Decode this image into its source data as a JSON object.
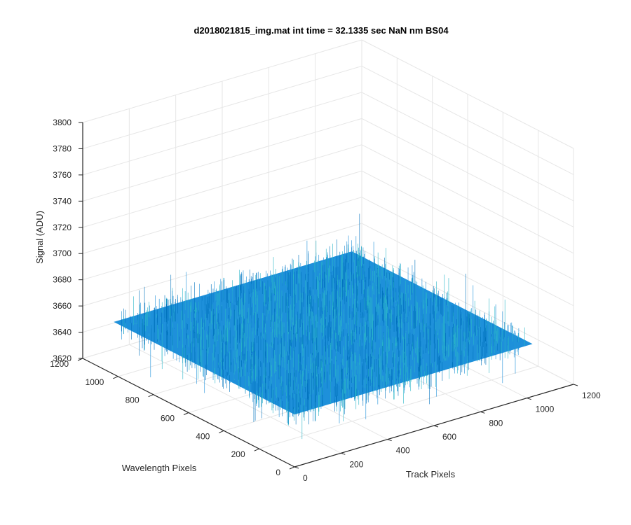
{
  "chart_data": {
    "type": "surface",
    "title": "d2018021815_img.mat int time = 32.1335 sec  NaN nm BS04",
    "x_axis": {
      "label": "Track Pixels",
      "range": [
        0,
        1200
      ],
      "ticks": [
        0,
        200,
        400,
        600,
        800,
        1000,
        1200
      ]
    },
    "y_axis": {
      "label": "Wavelength Pixels",
      "range": [
        0,
        1200
      ],
      "ticks": [
        0,
        200,
        400,
        600,
        800,
        1000,
        1200
      ]
    },
    "z_axis": {
      "label": "Signal (ADU)",
      "range": [
        3620,
        3800
      ],
      "ticks": [
        3620,
        3640,
        3660,
        3680,
        3700,
        3720,
        3740,
        3760,
        3780,
        3800
      ]
    },
    "surface": {
      "x_extent": [
        0,
        1024
      ],
      "y_extent": [
        0,
        1024
      ],
      "mean_signal": 3660,
      "noise_min": 3635,
      "noise_max": 3690,
      "colormap": "parula"
    },
    "grid": true,
    "view": "3-D box, azimuth -37.5, elevation 30"
  },
  "colors": {
    "surface_low": "#0072BD",
    "surface_mid": "#1E90DA",
    "surface_high": "#29B6C8",
    "grid": "#e6e6e6",
    "axis": "#262626"
  }
}
